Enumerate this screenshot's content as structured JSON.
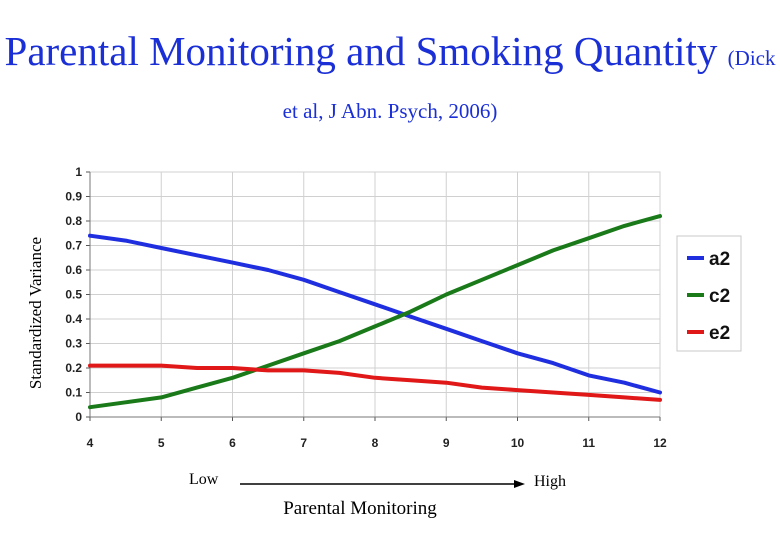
{
  "header": {
    "title_main": "Parental Monitoring and Smoking Quantity",
    "title_citation": "(Dick et al, J Abn. Psych, 2006)"
  },
  "axis_annotations": {
    "low": "Low",
    "high": "High",
    "xlabel": "Parental Monitoring"
  },
  "chart_data": {
    "type": "line",
    "title": "Parental Monitoring and Smoking Quantity",
    "xlabel": "Parental Monitoring",
    "ylabel": "Standardized Variance",
    "xlim": [
      4,
      12
    ],
    "ylim": [
      0,
      1
    ],
    "x": [
      4,
      4.5,
      5,
      5.5,
      6,
      6.5,
      7,
      7.5,
      8,
      8.5,
      9,
      9.5,
      10,
      10.5,
      11,
      11.5,
      12
    ],
    "xticks": [
      "4",
      "5",
      "6",
      "7",
      "8",
      "9",
      "10",
      "11",
      "12"
    ],
    "yticks": [
      "0",
      "0.1",
      "0.2",
      "0.3",
      "0.4",
      "0.5",
      "0.6",
      "0.7",
      "0.8",
      "0.9",
      "1"
    ],
    "grid": true,
    "legend_position": "right",
    "series": [
      {
        "name": "a2",
        "color": "#1f2fe0",
        "values": [
          0.74,
          0.72,
          0.69,
          0.66,
          0.63,
          0.6,
          0.56,
          0.51,
          0.46,
          0.41,
          0.36,
          0.31,
          0.26,
          0.22,
          0.17,
          0.14,
          0.1
        ]
      },
      {
        "name": "c2",
        "color": "#1a7a1a",
        "values": [
          0.04,
          0.06,
          0.08,
          0.12,
          0.16,
          0.21,
          0.26,
          0.31,
          0.37,
          0.43,
          0.5,
          0.56,
          0.62,
          0.68,
          0.73,
          0.78,
          0.82
        ]
      },
      {
        "name": "e2",
        "color": "#e01818",
        "values": [
          0.21,
          0.21,
          0.21,
          0.2,
          0.2,
          0.19,
          0.19,
          0.18,
          0.16,
          0.15,
          0.14,
          0.12,
          0.11,
          0.1,
          0.09,
          0.08,
          0.07
        ]
      }
    ]
  }
}
